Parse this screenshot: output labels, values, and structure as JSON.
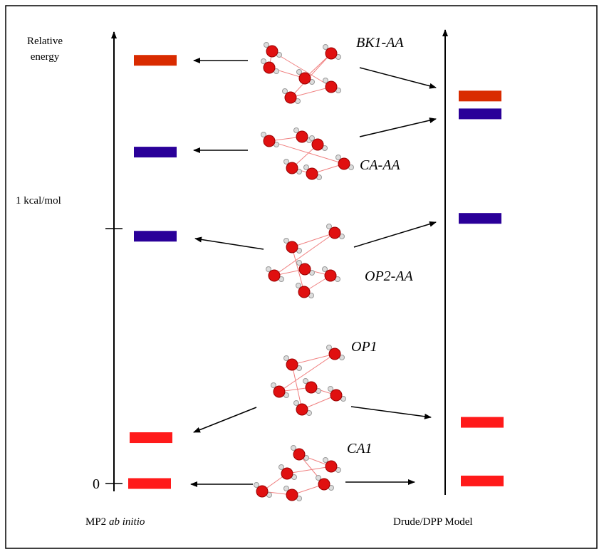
{
  "axis_label": [
    "Relative",
    "energy"
  ],
  "ticks": [
    {
      "value": 0,
      "label": "0"
    },
    {
      "value": 1,
      "label": "1 kcal/mol"
    }
  ],
  "methods": [
    {
      "name": "MP2",
      "name_italic": "ab initio",
      "energies": [
        1.66,
        1.3,
        0.97,
        0.18,
        0
      ]
    },
    {
      "name": "Drude/DPP Model",
      "energies": [
        1.52,
        1.45,
        1.04,
        0.24,
        0.01
      ]
    }
  ],
  "structures": [
    {
      "name": "BK1-AA",
      "color": "#d92b00"
    },
    {
      "name": "CA-AA",
      "color": "#2a0099"
    },
    {
      "name": "OP2-AA",
      "color": "#2a0099"
    },
    {
      "name": "OP1",
      "color": "#ff1a1a"
    },
    {
      "name": "CA1",
      "color": "#ff1a1a"
    }
  ]
}
